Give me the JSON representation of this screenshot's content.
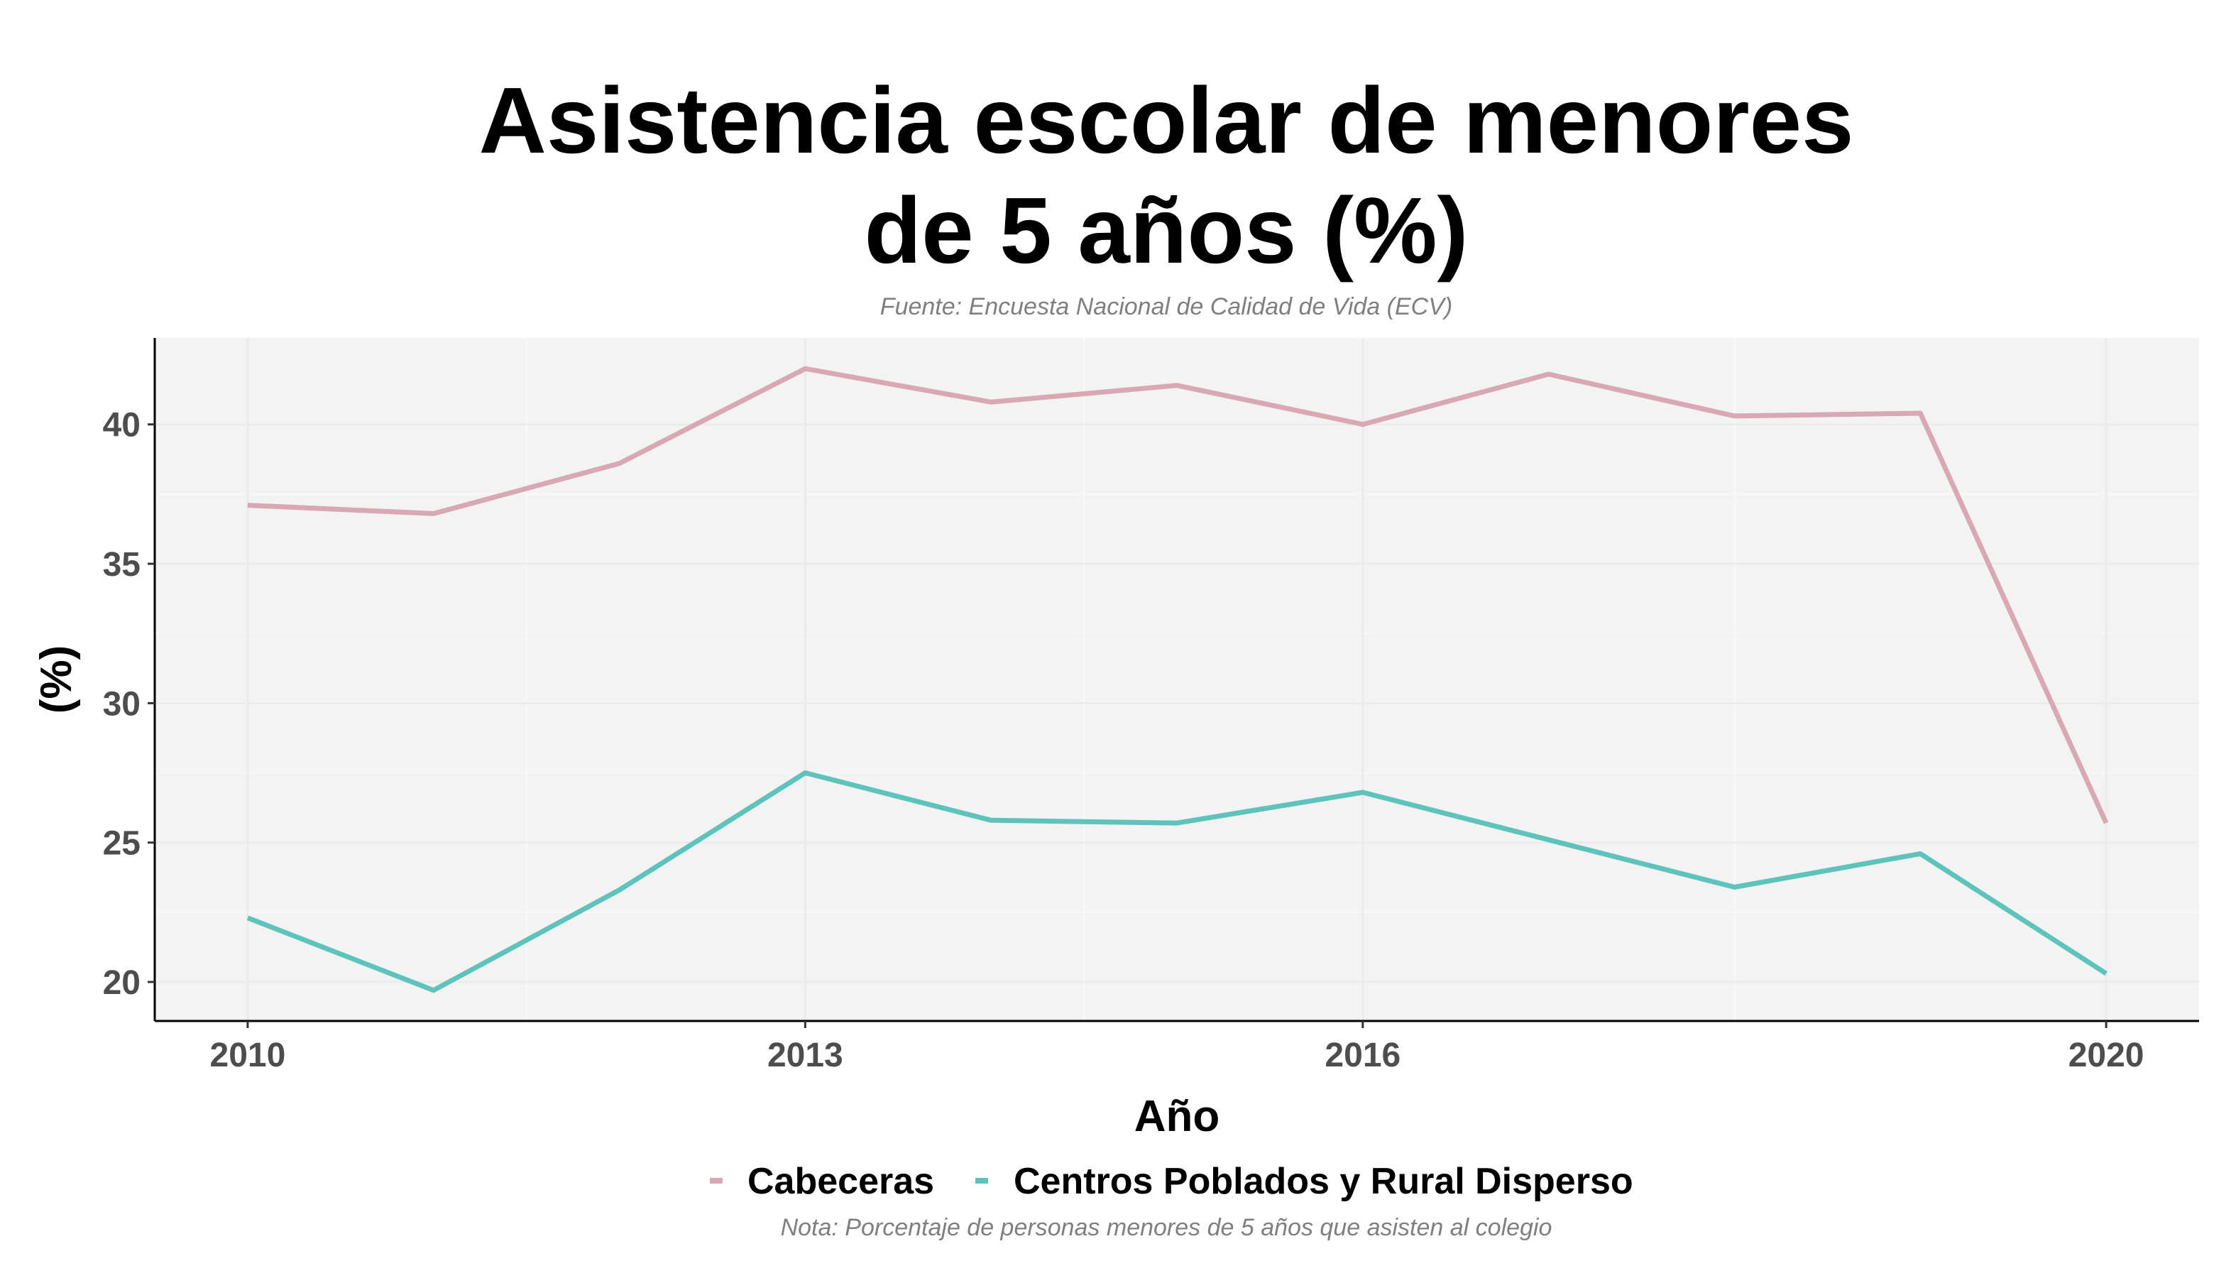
{
  "chart_data": {
    "type": "line",
    "title_lines": [
      "Asistencia escolar de menores",
      "de 5 años (%)"
    ],
    "subtitle": "Fuente: Encuesta Nacional de Calidad de Vida (ECV)",
    "caption": "Nota: Porcentaje de personas menores de 5 años que asisten al colegio",
    "xlabel": "Año",
    "ylabel": "(%)",
    "x": [
      2010,
      2011,
      2012,
      2013,
      2014,
      2015,
      2016,
      2017,
      2018,
      2019,
      2020
    ],
    "x_ticks": [
      2010,
      2013,
      2016,
      2020
    ],
    "y_ticks": [
      20,
      25,
      30,
      35,
      40
    ],
    "xlim": [
      2009.5,
      2020.5
    ],
    "ylim": [
      18.6,
      43.1
    ],
    "grid": true,
    "legend_position": "bottom",
    "panel_background": "#f3f3f3",
    "series": [
      {
        "name": "Cabeceras",
        "color": "#d8a9b5",
        "values": [
          37.1,
          36.8,
          38.6,
          42.0,
          40.8,
          41.4,
          40.0,
          41.8,
          40.3,
          40.4,
          25.7
        ]
      },
      {
        "name": "Centros Poblados y Rural Disperso",
        "color": "#5ec4bb",
        "values": [
          22.3,
          19.7,
          23.3,
          27.5,
          25.8,
          25.7,
          26.8,
          25.1,
          23.4,
          24.6,
          20.3
        ]
      }
    ]
  }
}
